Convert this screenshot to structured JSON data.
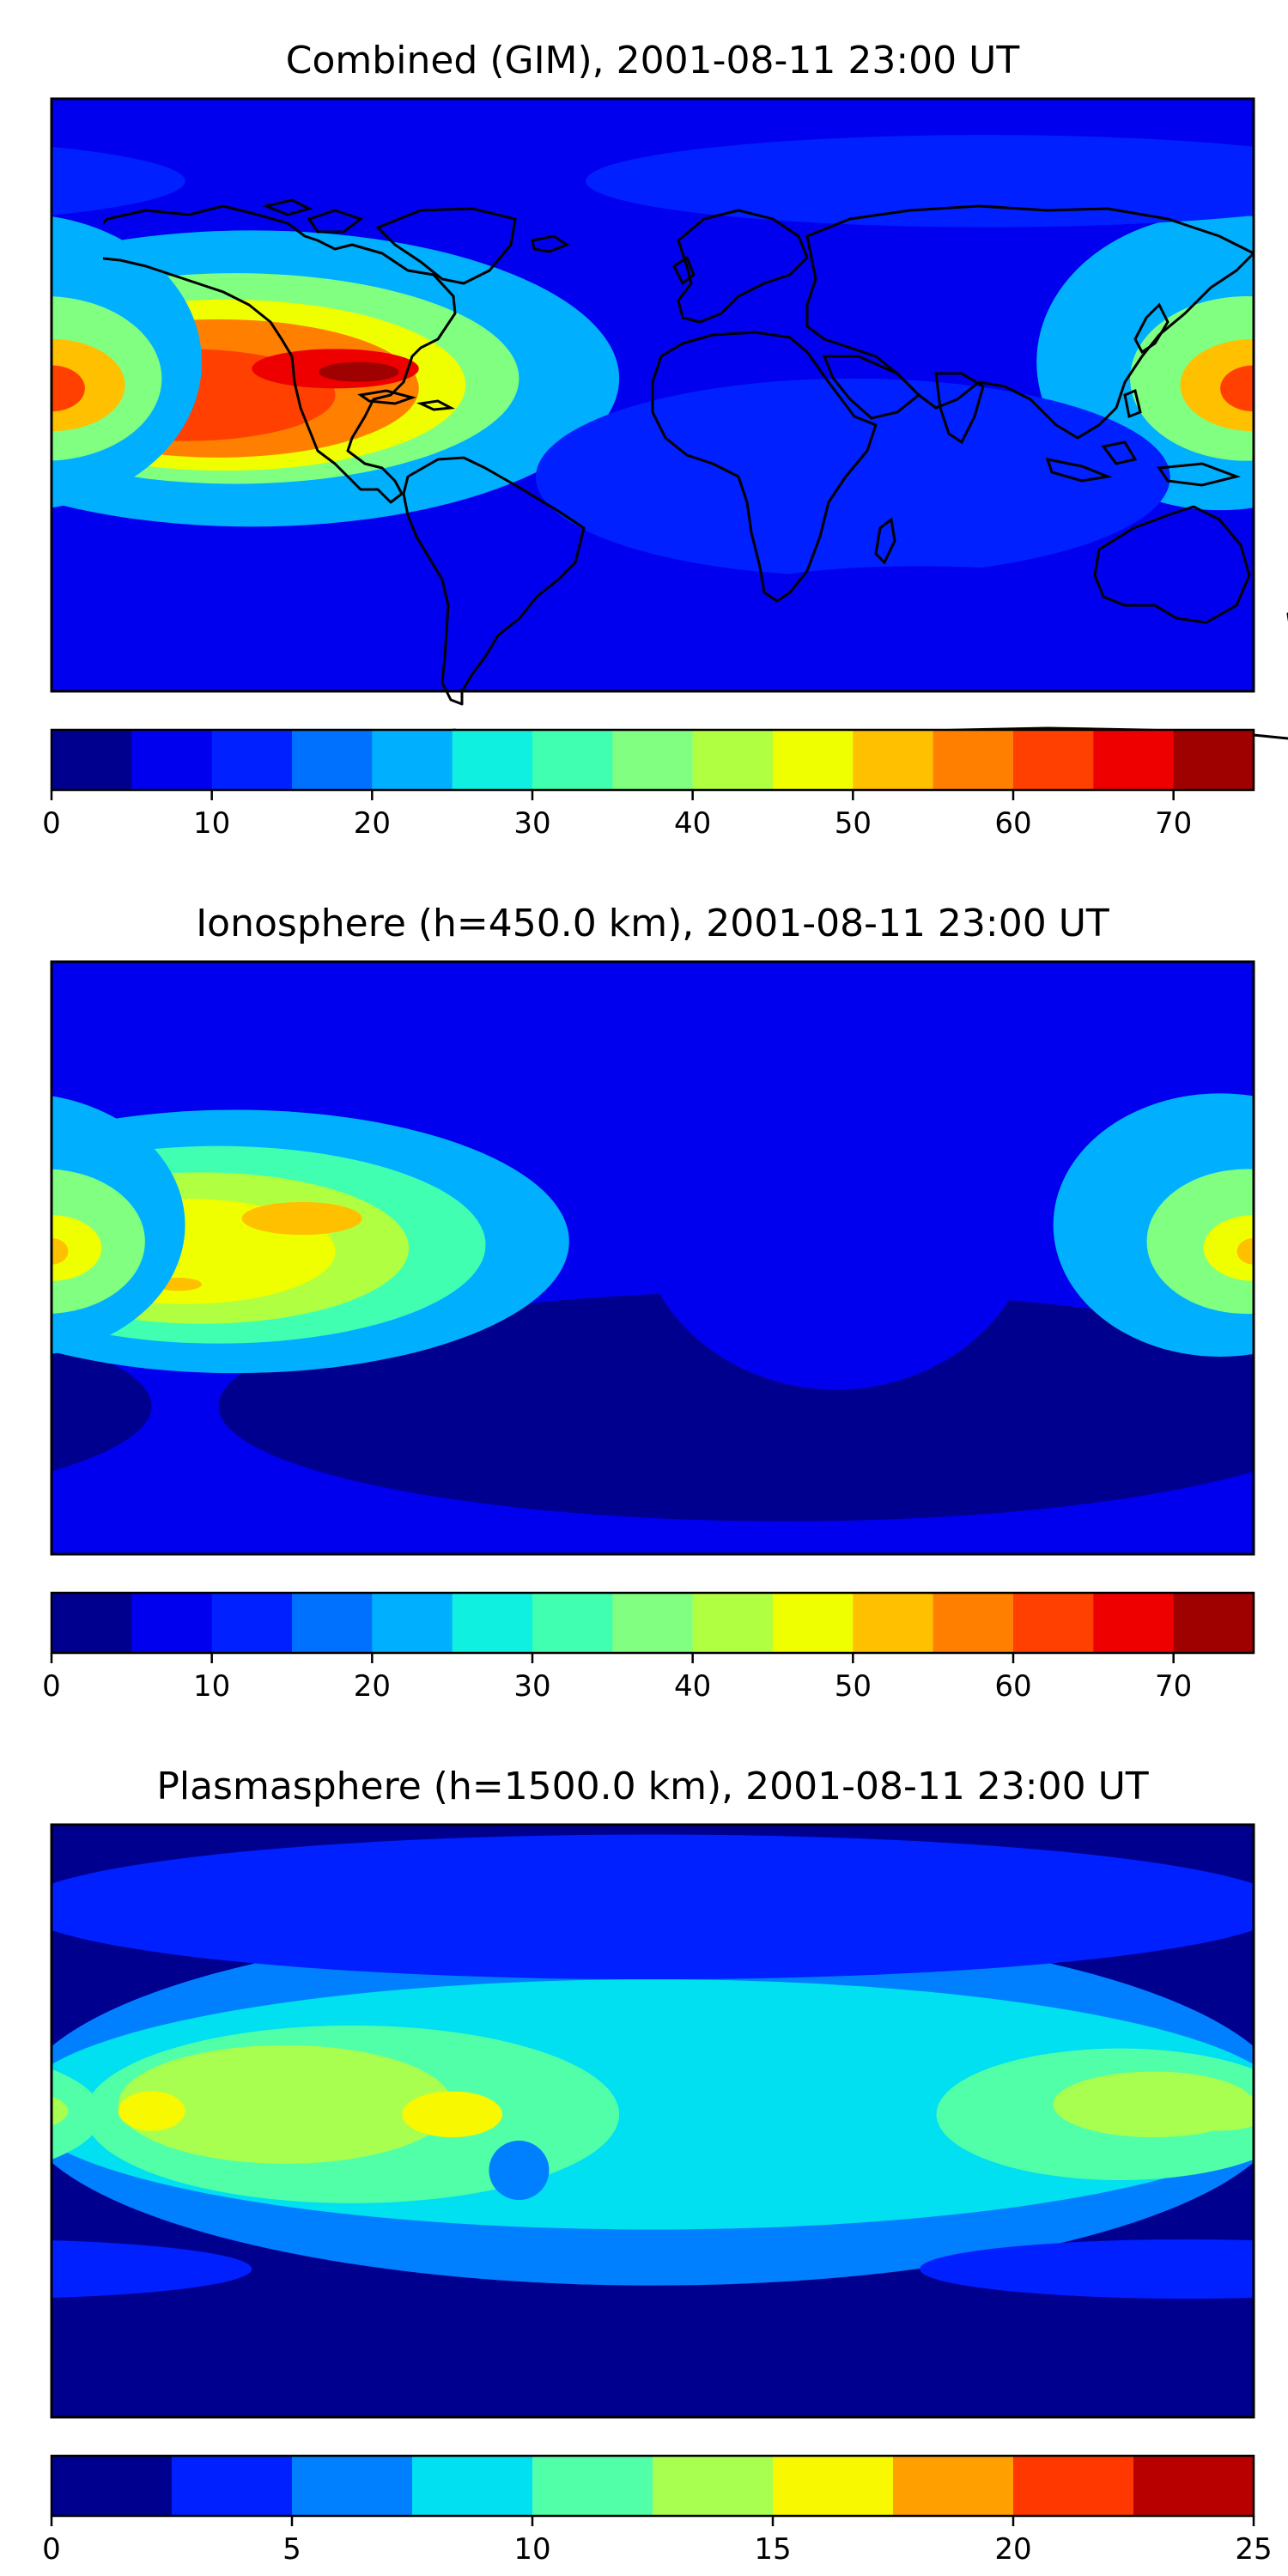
{
  "panels": [
    {
      "title": "Combined (GIM), 2001-08-11 23:00 UT",
      "colorbar": {
        "min": 0,
        "max": 75,
        "step": 5,
        "ticks": [
          "0",
          "10",
          "20",
          "30",
          "40",
          "50",
          "60",
          "70"
        ],
        "tick_values": [
          0,
          10,
          20,
          30,
          40,
          50,
          60,
          70
        ]
      },
      "blobs": [
        {
          "c": 22,
          "lon": -120,
          "lat": 5,
          "rx": 110,
          "ry": 45
        },
        {
          "c": 35,
          "lon": -125,
          "lat": 5,
          "rx": 85,
          "ry": 32
        },
        {
          "c": 45,
          "lon": -128,
          "lat": 3,
          "rx": 72,
          "ry": 26
        },
        {
          "c": 55,
          "lon": -130,
          "lat": 2,
          "rx": 60,
          "ry": 21
        },
        {
          "c": 62,
          "lon": -140,
          "lat": 0,
          "rx": 45,
          "ry": 14
        },
        {
          "c": 66,
          "lon": -95,
          "lat": 8,
          "rx": 25,
          "ry": 6
        },
        {
          "c": 72,
          "lon": -88,
          "lat": 7,
          "rx": 12,
          "ry": 3
        },
        {
          "c": 72,
          "lon": -170,
          "lat": 3,
          "rx": 7,
          "ry": 3
        },
        {
          "c": 22,
          "lon": 170,
          "lat": 10,
          "rx": 55,
          "ry": 45
        },
        {
          "c": 38,
          "lon": 178,
          "lat": 5,
          "rx": 35,
          "ry": 25
        },
        {
          "c": 52,
          "lon": 180,
          "lat": 3,
          "rx": 22,
          "ry": 14
        },
        {
          "c": 64,
          "lon": 180,
          "lat": 2,
          "rx": 10,
          "ry": 7
        },
        {
          "c": 12,
          "lon": 60,
          "lat": -25,
          "rx": 95,
          "ry": 30
        },
        {
          "c": 6,
          "lon": 80,
          "lat": -60,
          "rx": 55,
          "ry": 8
        },
        {
          "c": 6,
          "lon": -15,
          "lat": -65,
          "rx": 30,
          "ry": 7
        },
        {
          "c": 12,
          "lon": 100,
          "lat": 65,
          "rx": 120,
          "ry": 14
        }
      ]
    },
    {
      "title": "Ionosphere  (h=450.0 km), 2001-08-11 23:00 UT",
      "colorbar": {
        "min": 0,
        "max": 75,
        "step": 5,
        "ticks": [
          "0",
          "10",
          "20",
          "30",
          "40",
          "50",
          "60",
          "70"
        ],
        "tick_values": [
          0,
          10,
          20,
          30,
          40,
          50,
          60,
          70
        ]
      },
      "blobs": [
        {
          "c": 4,
          "lon": 40,
          "lat": -45,
          "rx": 170,
          "ry": 35
        },
        {
          "c": 8,
          "lon": 55,
          "lat": 15,
          "rx": 60,
          "ry": 55
        },
        {
          "c": 22,
          "lon": -125,
          "lat": 5,
          "rx": 100,
          "ry": 40
        },
        {
          "c": 32,
          "lon": -130,
          "lat": 4,
          "rx": 80,
          "ry": 30
        },
        {
          "c": 42,
          "lon": -135,
          "lat": 3,
          "rx": 62,
          "ry": 23
        },
        {
          "c": 47,
          "lon": -140,
          "lat": 2,
          "rx": 45,
          "ry": 16
        },
        {
          "c": 52,
          "lon": -105,
          "lat": 12,
          "rx": 18,
          "ry": 5
        },
        {
          "c": 52,
          "lon": -172,
          "lat": 3,
          "rx": 10,
          "ry": 4
        },
        {
          "c": 52,
          "lon": -142,
          "lat": -8,
          "rx": 7,
          "ry": 2
        },
        {
          "c": 22,
          "lon": 170,
          "lat": 10,
          "rx": 50,
          "ry": 40
        },
        {
          "c": 35,
          "lon": 178,
          "lat": 5,
          "rx": 30,
          "ry": 22
        },
        {
          "c": 47,
          "lon": 180,
          "lat": 3,
          "rx": 15,
          "ry": 10
        },
        {
          "c": 53,
          "lon": 180,
          "lat": 2,
          "rx": 5,
          "ry": 4
        }
      ]
    },
    {
      "title": "Plasmasphere (h=1500.0 km), 2001-08-11 23:00 UT",
      "colorbar": {
        "min": 0,
        "max": 25,
        "step": 2.5,
        "ticks": [
          "0",
          "5",
          "10",
          "15",
          "20",
          "25"
        ],
        "tick_values": [
          0,
          5,
          10,
          15,
          20,
          25
        ]
      },
      "blobs": [
        {
          "c": 6,
          "lon": 0,
          "lat": 5,
          "rx": 190,
          "ry": 55
        },
        {
          "c": 9,
          "lon": 0,
          "lat": 5,
          "rx": 190,
          "ry": 38
        },
        {
          "c": 11,
          "lon": -90,
          "lat": 2,
          "rx": 80,
          "ry": 27
        },
        {
          "c": 11,
          "lon": 140,
          "lat": 2,
          "rx": 55,
          "ry": 20
        },
        {
          "c": 13.5,
          "lon": -110,
          "lat": 5,
          "rx": 50,
          "ry": 18
        },
        {
          "c": 13.5,
          "lon": 150,
          "lat": 5,
          "rx": 30,
          "ry": 10
        },
        {
          "c": 15.5,
          "lon": -150,
          "lat": 3,
          "rx": 10,
          "ry": 6
        },
        {
          "c": 15.5,
          "lon": -60,
          "lat": 2,
          "rx": 15,
          "ry": 7
        },
        {
          "c": 16.5,
          "lon": -57,
          "lat": 3,
          "rx": 3,
          "ry": 2
        },
        {
          "c": 13.5,
          "lon": 170,
          "lat": 3,
          "rx": 15,
          "ry": 6
        },
        {
          "c": 7,
          "lon": -40,
          "lat": -15,
          "rx": 9,
          "ry": 9
        },
        {
          "c": 3,
          "lon": 0,
          "lat": 65,
          "rx": 190,
          "ry": 22
        },
        {
          "c": 3,
          "lon": 160,
          "lat": -45,
          "rx": 80,
          "ry": 9
        },
        {
          "c": 1,
          "lon": 0,
          "lat": -75,
          "rx": 190,
          "ry": 8
        }
      ]
    }
  ]
}
